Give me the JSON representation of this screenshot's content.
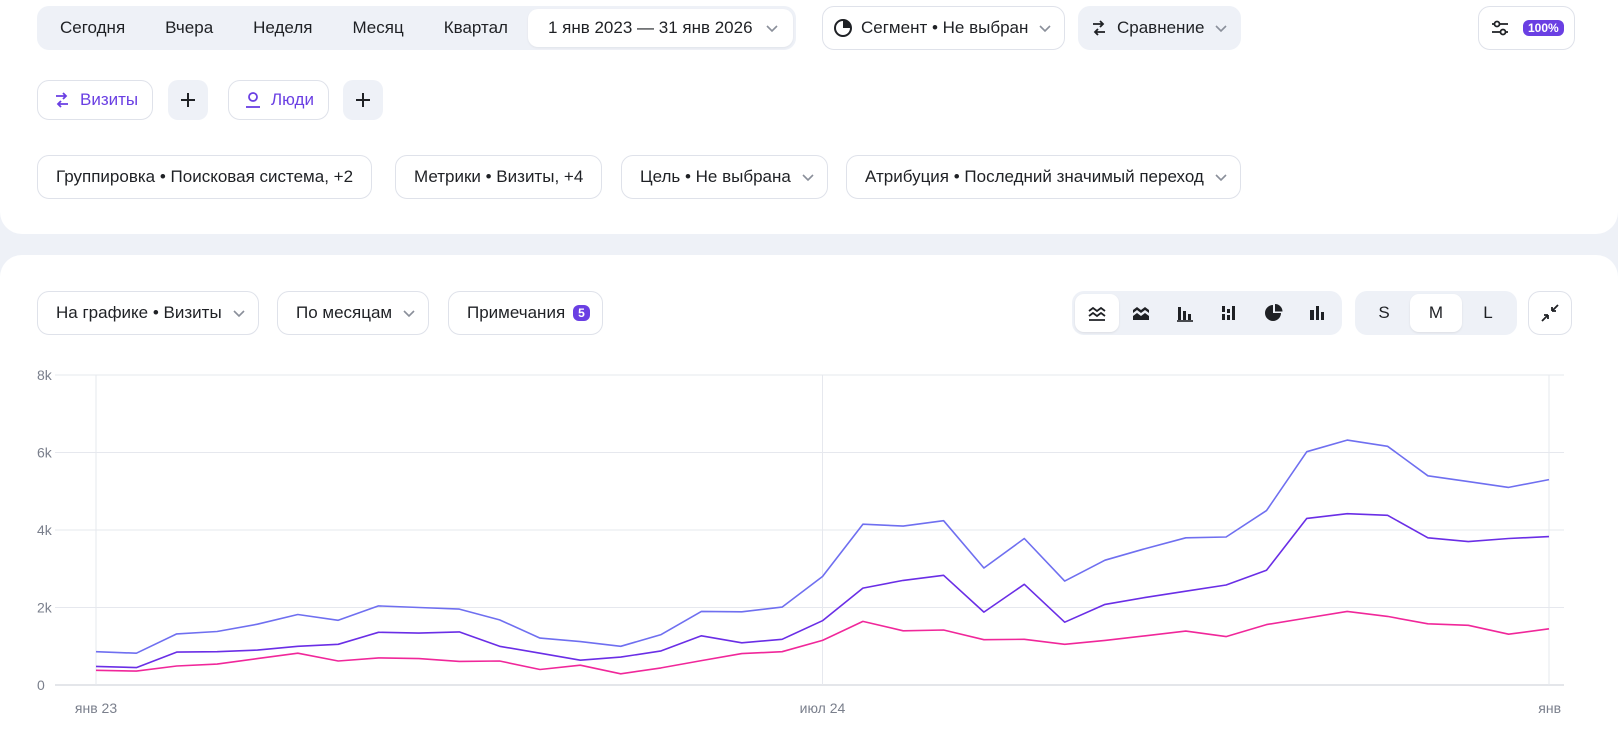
{
  "period": {
    "tabs": [
      "Сегодня",
      "Вчера",
      "Неделя",
      "Месяц",
      "Квартал"
    ],
    "date_range": "1 янв 2023 — 31 янв 2026"
  },
  "segment": {
    "label": "Сегмент • Не выбран"
  },
  "comparison": {
    "label": "Сравнение"
  },
  "settings": {
    "badge": "100%"
  },
  "sources": [
    {
      "label": "Визиты",
      "icon": "visits-icon"
    },
    {
      "label": "Люди",
      "icon": "person-icon"
    }
  ],
  "filters": {
    "grouping": "Группировка • Поисковая система, +2",
    "metrics": "Метрики • Визиты, +4",
    "goal": "Цель • Не выбрана",
    "attribution": "Атрибуция • Последний значимый переход"
  },
  "chart_controls": {
    "on_chart": "На графике • Визиты",
    "granularity": "По месяцам",
    "notes_label": "Примечания",
    "notes_count": "5",
    "chart_types": [
      "line-chart-icon",
      "stacked-area-icon",
      "bar-chart-icon",
      "stacked-bar-icon",
      "pie-chart-icon",
      "column-chart-icon"
    ],
    "sizes": [
      "S",
      "M",
      "L"
    ],
    "active_size": "M"
  },
  "colors": {
    "accent": "#6a3fe3",
    "series_total": "#6f6ff0",
    "series_mid": "#6a2ee6",
    "series_low": "#f0279a"
  },
  "chart_data": {
    "type": "line",
    "x": [
      "2023-01",
      "2023-02",
      "2023-03",
      "2023-04",
      "2023-05",
      "2023-06",
      "2023-07",
      "2023-08",
      "2023-09",
      "2023-10",
      "2023-11",
      "2023-12",
      "2024-01",
      "2024-02",
      "2024-03",
      "2024-04",
      "2024-05",
      "2024-06",
      "2024-07",
      "2024-08",
      "2024-09",
      "2024-10",
      "2024-11",
      "2024-12",
      "2025-01",
      "2025-02",
      "2025-03",
      "2025-04",
      "2025-05",
      "2025-06",
      "2025-07",
      "2025-08",
      "2025-09",
      "2025-10",
      "2025-11",
      "2025-12",
      "2026-01"
    ],
    "x_tick_labels": [
      "янв 23",
      "июл 24",
      "янв"
    ],
    "y_tick_labels": [
      "0",
      "2k",
      "4k",
      "6k",
      "8k"
    ],
    "ylim": [
      0,
      8000
    ],
    "grid": true,
    "series": [
      {
        "values": [
          860,
          820,
          1320,
          1380,
          1570,
          1820,
          1670,
          2040,
          2000,
          1960,
          1680,
          1210,
          1120,
          1000,
          1300,
          1900,
          1890,
          2010,
          2800,
          4150,
          4100,
          4240,
          3020,
          3780,
          2680,
          3220,
          3520,
          3800,
          3820,
          4500,
          6020,
          6320,
          6160,
          5400,
          5250,
          5100,
          5300
        ]
      },
      {
        "values": [
          480,
          450,
          850,
          860,
          900,
          1000,
          1050,
          1360,
          1340,
          1370,
          1000,
          820,
          640,
          720,
          880,
          1270,
          1090,
          1180,
          1660,
          2500,
          2700,
          2830,
          1880,
          2600,
          1620,
          2080,
          2260,
          2420,
          2580,
          2960,
          4300,
          4420,
          4380,
          3800,
          3700,
          3780,
          3830
        ]
      },
      {
        "values": [
          380,
          360,
          490,
          540,
          680,
          820,
          620,
          700,
          680,
          610,
          620,
          400,
          510,
          290,
          440,
          630,
          810,
          860,
          1150,
          1640,
          1400,
          1420,
          1170,
          1180,
          1050,
          1150,
          1270,
          1390,
          1250,
          1560,
          1730,
          1900,
          1770,
          1580,
          1540,
          1310,
          1450
        ]
      }
    ]
  }
}
